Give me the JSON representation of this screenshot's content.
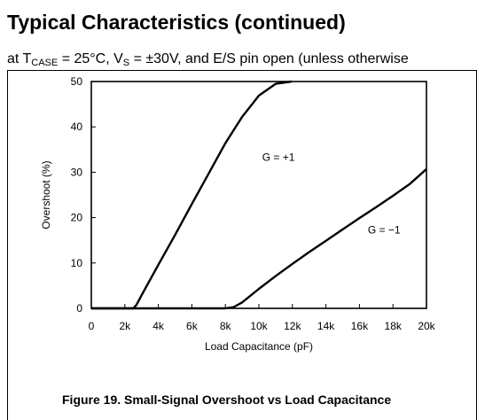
{
  "page": {
    "section_heading": "Typical Characteristics (continued)",
    "conditions": {
      "prefix": "at T",
      "tcase_sub": "CASE",
      "middle": " = 25°C, V",
      "vs_sub": "S",
      "suffix": " = ±30V, and E/S pin open (unless otherwise"
    },
    "figure_caption": "Figure 19. Small-Signal Overshoot vs Load Capacitance"
  },
  "chart_data": {
    "type": "line",
    "title": "",
    "xlabel": "Load Capacitance (pF)",
    "ylabel": "Overshoot (%)",
    "xlim": [
      0,
      20000
    ],
    "ylim": [
      0,
      50
    ],
    "x_ticks": [
      0,
      2000,
      4000,
      6000,
      8000,
      10000,
      12000,
      14000,
      16000,
      18000,
      20000
    ],
    "x_tick_labels": [
      "0",
      "2k",
      "4k",
      "6k",
      "8k",
      "10k",
      "12k",
      "14k",
      "16k",
      "18k",
      "20k"
    ],
    "y_ticks": [
      0,
      10,
      20,
      30,
      40,
      50
    ],
    "y_tick_labels": [
      "0",
      "10",
      "20",
      "30",
      "40",
      "50"
    ],
    "grid": false,
    "series": [
      {
        "name": "G = +1",
        "x": [
          0,
          2500,
          2700,
          3000,
          4000,
          5000,
          6000,
          7000,
          8000,
          9000,
          10000,
          11000,
          11950
        ],
        "y": [
          0,
          0,
          0.8,
          2.9,
          9.6,
          16.2,
          23.0,
          29.7,
          36.4,
          42.2,
          46.9,
          49.5,
          50
        ]
      },
      {
        "name": "G = −1",
        "x": [
          0,
          8000,
          8500,
          9000,
          9500,
          10000,
          11000,
          12000,
          13000,
          14000,
          15000,
          16000,
          17000,
          18000,
          19000,
          20000
        ],
        "y": [
          0,
          0,
          0.3,
          1.3,
          2.8,
          4.3,
          7.1,
          9.8,
          12.4,
          14.9,
          17.4,
          19.9,
          22.3,
          24.8,
          27.4,
          30.7
        ]
      }
    ],
    "annotations": [
      {
        "text": "G = +1",
        "x": 10200,
        "y": 32.5
      },
      {
        "text": "G = −1",
        "x": 16500,
        "y": 16.5
      }
    ]
  }
}
